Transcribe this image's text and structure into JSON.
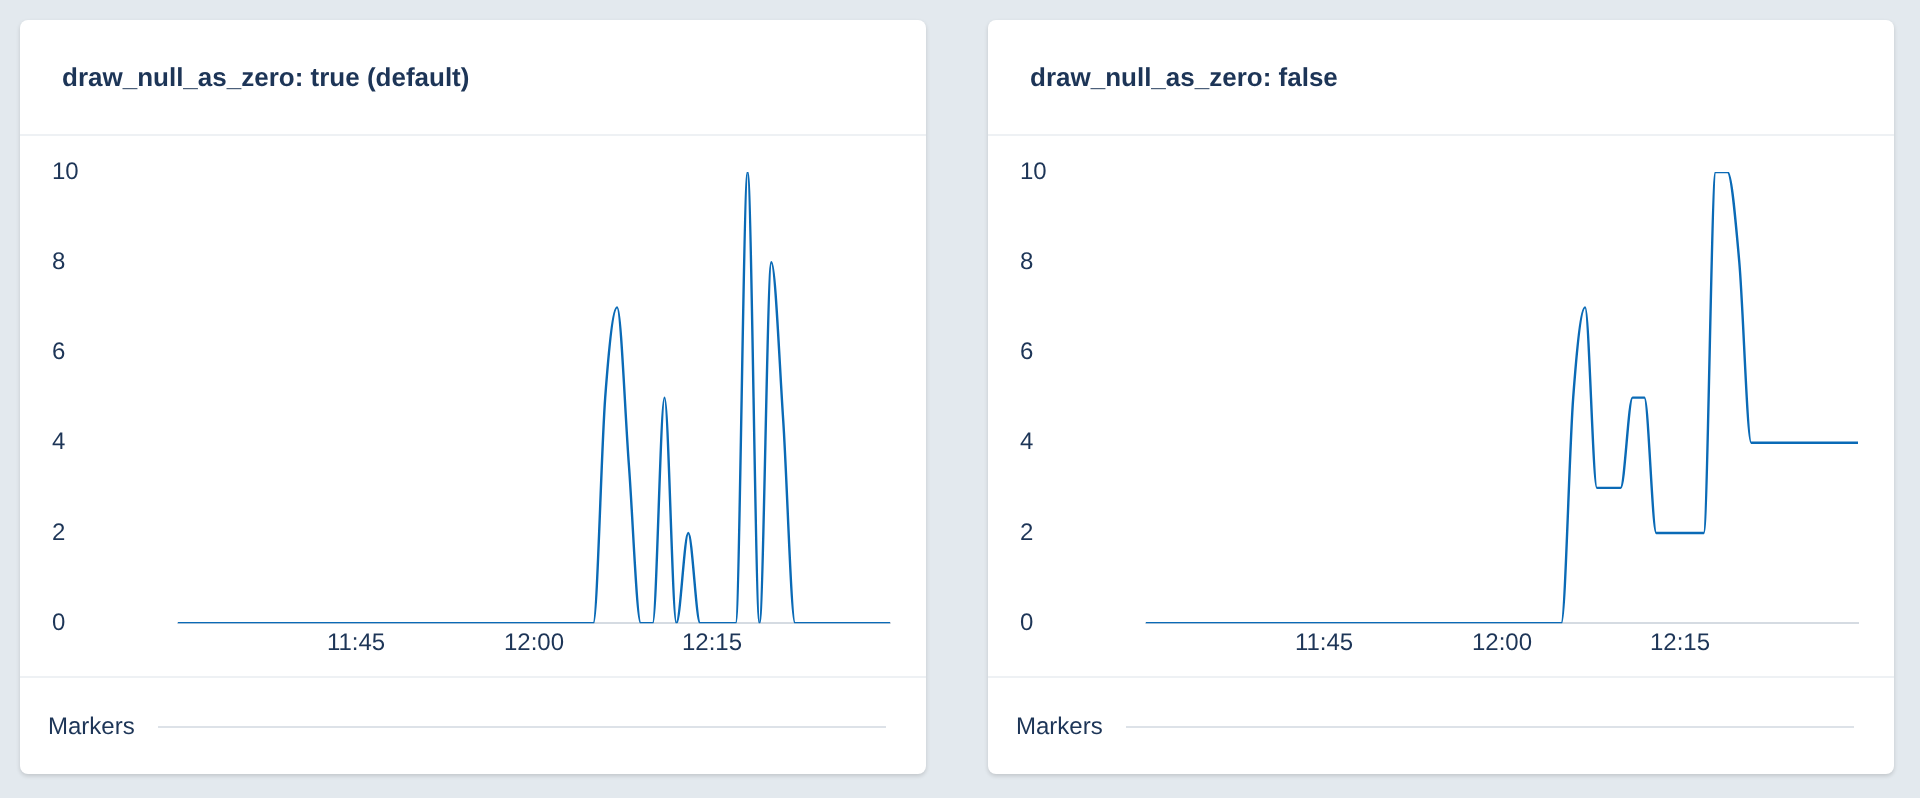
{
  "chart_data": [
    {
      "type": "line",
      "title": "draw_null_as_zero: true (default)",
      "xlim": [
        11.5,
        12.5
      ],
      "xticks": [
        {
          "value": 11.75,
          "label": "11:45"
        },
        {
          "value": 12,
          "label": "12:00"
        },
        {
          "value": 12.25,
          "label": "12:15"
        }
      ],
      "ylim": [
        0,
        10
      ],
      "yticks": [
        0,
        2,
        4,
        6,
        8,
        10
      ],
      "grid": false,
      "marker": "none",
      "line_style": "solid",
      "annotations": [
        "Markers"
      ],
      "series": [
        {
          "color": "#0a6ab6",
          "x": [
            11.5,
            12.0833,
            12.1,
            12.1167,
            12.1333,
            12.15,
            12.1667,
            12.1833,
            12.2,
            12.2167,
            12.2333,
            12.2833,
            12.3,
            12.3167,
            12.3333,
            12.35,
            12.3667,
            12.5
          ],
          "values": [
            0,
            0,
            5,
            7,
            3.5,
            0,
            0,
            5,
            0,
            2,
            0,
            0,
            10,
            0,
            8,
            4.5,
            0,
            0
          ]
        }
      ]
    },
    {
      "type": "line",
      "title": "draw_null_as_zero: false",
      "xlim": [
        11.5,
        12.5
      ],
      "xticks": [
        {
          "value": 11.75,
          "label": "11:45"
        },
        {
          "value": 12,
          "label": "12:00"
        },
        {
          "value": 12.25,
          "label": "12:15"
        }
      ],
      "ylim": [
        0,
        10
      ],
      "yticks": [
        0,
        2,
        4,
        6,
        8,
        10
      ],
      "grid": false,
      "marker": "none",
      "line_style": "solid",
      "annotations": [
        "Markers"
      ],
      "series": [
        {
          "color": "#0a6ab6",
          "x": [
            11.5,
            12.0833,
            12.1,
            12.1167,
            12.1333,
            12.1667,
            12.1833,
            12.2,
            12.2167,
            12.2833,
            12.3,
            12.3167,
            12.3333,
            12.35,
            12.5
          ],
          "values": [
            0,
            0,
            5,
            7,
            3,
            3,
            5,
            5,
            2,
            2,
            10,
            10,
            8,
            4,
            4
          ]
        }
      ]
    }
  ]
}
